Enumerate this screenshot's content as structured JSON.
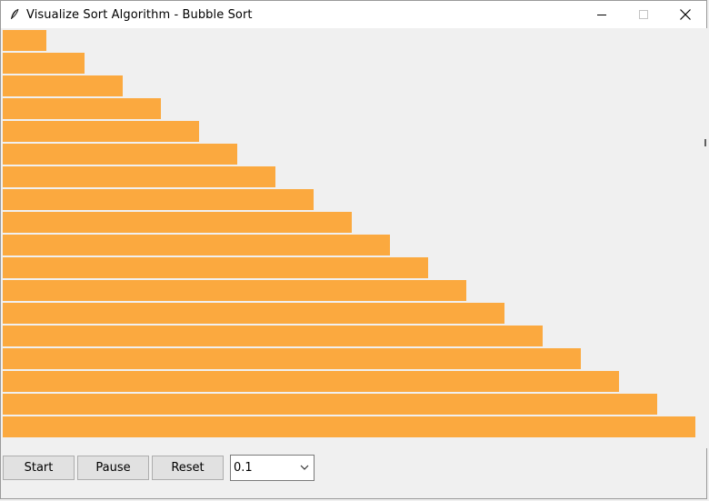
{
  "window": {
    "title": "Visualize Sort Algorithm - Bubble Sort",
    "icon": "feather-icon"
  },
  "window_controls": [
    "minimize-icon",
    "maximize-icon",
    "close-icon"
  ],
  "bars": {
    "color": "#fba93f",
    "values": [
      48,
      90,
      132,
      174,
      216,
      258,
      300,
      342,
      384,
      426,
      468,
      510,
      552,
      594,
      636,
      678,
      720,
      762
    ]
  },
  "controls": {
    "start_label": "Start",
    "pause_label": "Pause",
    "reset_label": "Reset",
    "speed_value": "0.1"
  }
}
